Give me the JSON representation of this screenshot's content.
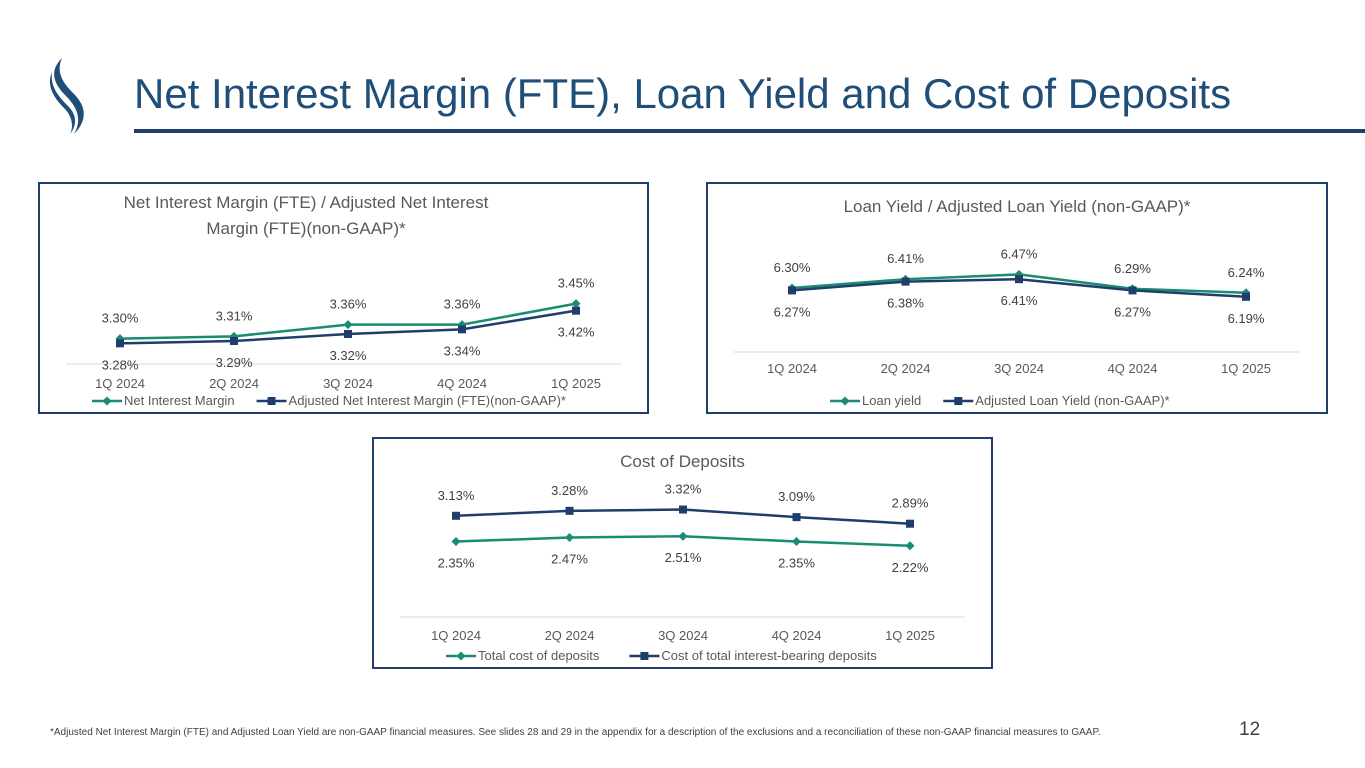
{
  "slide": {
    "title": "Net Interest Margin (FTE), Loan Yield and Cost of Deposits",
    "footnote_main": "*Adjusted Net Interest Margin (FTE) and Adjusted Loan Yield are non-GAAP financial measures.",
    "footnote_rest": " See slides 28 and 29 in the appendix for a description of the exclusions and a reconciliation of these non-GAAP financial measures to GAAP.",
    "page_number": "12"
  },
  "colors": {
    "green": "#1a8c73",
    "navy": "#1f3e6b",
    "title_blue": "#1f4e79"
  },
  "chart_data": [
    {
      "type": "line",
      "title_lines": [
        "Net Interest Margin (FTE) / Adjusted Net Interest",
        "Margin (FTE)(non-GAAP)*"
      ],
      "categories": [
        "1Q 2024",
        "2Q 2024",
        "3Q 2024",
        "4Q 2024",
        "1Q 2025"
      ],
      "ylim": [
        3.2,
        3.5
      ],
      "series": [
        {
          "name": "Net Interest Margin",
          "marker": "diamond",
          "color": "#1a8c73",
          "label_pos": "above",
          "values": [
            3.3,
            3.31,
            3.36,
            3.36,
            3.45
          ],
          "labels": [
            "3.30%",
            "3.31%",
            "3.36%",
            "3.36%",
            "3.45%"
          ]
        },
        {
          "name": "Adjusted Net Interest Margin (FTE)(non-GAAP)*",
          "marker": "square",
          "color": "#1f3e6b",
          "label_pos": "below",
          "values": [
            3.28,
            3.29,
            3.32,
            3.34,
            3.42
          ],
          "labels": [
            "3.28%",
            "3.29%",
            "3.32%",
            "3.34%",
            "3.42%"
          ]
        }
      ]
    },
    {
      "type": "line",
      "title_lines": [
        "Loan Yield / Adjusted Loan Yield (non-GAAP)*"
      ],
      "categories": [
        "1Q 2024",
        "2Q 2024",
        "3Q 2024",
        "4Q 2024",
        "1Q 2025"
      ],
      "ylim": [
        5.5,
        7.0
      ],
      "series": [
        {
          "name": "Loan yield",
          "marker": "diamond",
          "color": "#1a8c73",
          "label_pos": "above",
          "values": [
            6.3,
            6.41,
            6.47,
            6.29,
            6.24
          ],
          "labels": [
            "6.30%",
            "6.41%",
            "6.47%",
            "6.29%",
            "6.24%"
          ]
        },
        {
          "name": "Adjusted Loan Yield (non-GAAP)*",
          "marker": "square",
          "color": "#1f3e6b",
          "label_pos": "below",
          "values": [
            6.27,
            6.38,
            6.41,
            6.27,
            6.19
          ],
          "labels": [
            "6.27%",
            "6.38%",
            "6.41%",
            "6.27%",
            "6.19%"
          ]
        }
      ]
    },
    {
      "type": "line",
      "title_lines": [
        "Cost of Deposits"
      ],
      "categories": [
        "1Q 2024",
        "2Q 2024",
        "3Q 2024",
        "4Q 2024",
        "1Q 2025"
      ],
      "ylim": [
        0.0,
        3.7
      ],
      "series": [
        {
          "name": "Total cost of deposits",
          "marker": "diamond",
          "color": "#1a8c73",
          "label_pos": "below",
          "values": [
            2.35,
            2.47,
            2.51,
            2.35,
            2.22
          ],
          "labels": [
            "2.35%",
            "2.47%",
            "2.51%",
            "2.35%",
            "2.22%"
          ]
        },
        {
          "name": "Cost of total interest-bearing deposits",
          "marker": "square",
          "color": "#1f3e6b",
          "label_pos": "above",
          "values": [
            3.13,
            3.28,
            3.32,
            3.09,
            2.89
          ],
          "labels": [
            "3.13%",
            "3.28%",
            "3.32%",
            "3.09%",
            "2.89%"
          ]
        }
      ]
    }
  ]
}
